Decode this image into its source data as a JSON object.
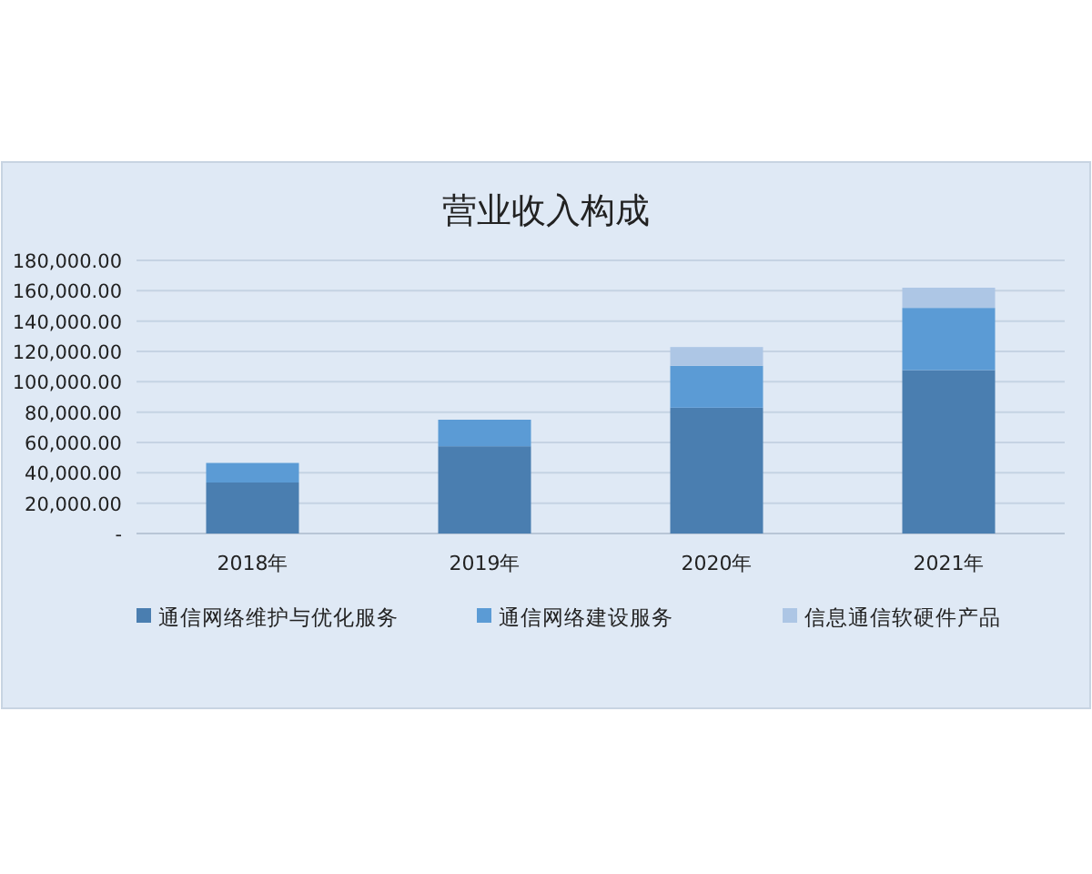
{
  "chart_data": {
    "type": "bar",
    "title": "营业收入构成",
    "stacked": true,
    "categories": [
      "2018年",
      "2019年",
      "2020年",
      "2021年"
    ],
    "series": [
      {
        "name": "通信网络维护与优化服务",
        "color": "#4a7eb0",
        "values": [
          33600,
          57500,
          82900,
          107700
        ]
      },
      {
        "name": "通信网络建设服务",
        "color": "#5b9bd5",
        "values": [
          12900,
          17500,
          27600,
          41000
        ]
      },
      {
        "name": "信息通信软硬件产品",
        "color": "#adc6e5",
        "values": [
          null,
          null,
          12400,
          13300
        ]
      }
    ],
    "ylim": [
      0,
      180000
    ],
    "yticks": [
      {
        "value": 0,
        "label": "-"
      },
      {
        "value": 20000,
        "label": "20,000.00"
      },
      {
        "value": 40000,
        "label": "40,000.00"
      },
      {
        "value": 60000,
        "label": "60,000.00"
      },
      {
        "value": 80000,
        "label": "80,000.00"
      },
      {
        "value": 100000,
        "label": "100,000.00"
      },
      {
        "value": 120000,
        "label": "120,000.00"
      },
      {
        "value": 140000,
        "label": "140,000.00"
      },
      {
        "value": 160000,
        "label": "160,000.00"
      },
      {
        "value": 180000,
        "label": "180,000.00"
      }
    ],
    "grid": "y",
    "legend": "bottom"
  }
}
